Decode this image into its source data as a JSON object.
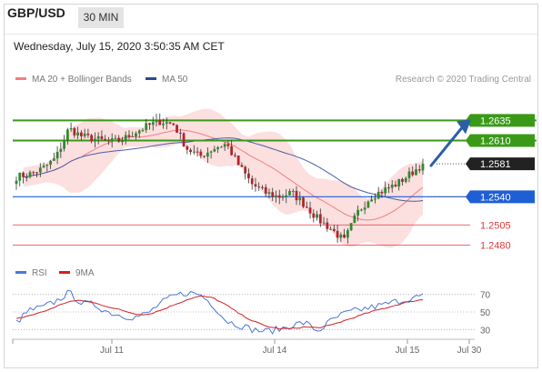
{
  "header": {
    "symbol": "GBP/USD",
    "timeframe": "30 MIN",
    "datetime": "Wednesday, July 15, 2020 3:50:35 AM CET"
  },
  "legend": {
    "ma20_label": "MA 20 + Bollinger Bands",
    "ma50_label": "MA 50",
    "credit": "Research © 2020 Trading Central"
  },
  "rsi_legend": {
    "rsi_label": "RSI",
    "ma_label": "9MA"
  },
  "colors": {
    "ma20": "#f08080",
    "ma50": "#4a5fa8",
    "bollinger": "#fbd4d4",
    "resistance": "#3a9a18",
    "support": "#1f5fd6",
    "lower": "#e23a3a",
    "arrow": "#2a5fa8",
    "up_candle": "#2e8b2e",
    "down_candle": "#b0262a"
  },
  "chart_data": [
    {
      "type": "candlestick",
      "instrument": "GBP/USD",
      "timeframe": "30 MIN",
      "xlabels": [
        "Jul 11",
        "Jul 14",
        "Jul 15",
        "Jul 30"
      ],
      "ylim": [
        1.2468,
        1.2658
      ],
      "indicators": [
        "MA 20 + Bollinger Bands",
        "MA 50"
      ],
      "close_path": [
        1.2565,
        1.2568,
        1.2575,
        1.2588,
        1.2625,
        1.2615,
        1.2612,
        1.2608,
        1.261,
        1.262,
        1.2628,
        1.2634,
        1.263,
        1.26,
        1.259,
        1.26,
        1.2606,
        1.2578,
        1.2555,
        1.2545,
        1.254,
        1.2545,
        1.253,
        1.2512,
        1.25,
        1.2485,
        1.252,
        1.254,
        1.2548,
        1.2556,
        1.2568,
        1.2581
      ],
      "current_price": 1.2581,
      "levels": [
        {
          "value": 1.2635,
          "label": "1.2635",
          "role": "resistance"
        },
        {
          "value": 1.261,
          "label": "1.2610",
          "role": "resistance"
        },
        {
          "value": 1.2581,
          "label": "1.2581",
          "role": "last"
        },
        {
          "value": 1.254,
          "label": "1.2540",
          "role": "pivot"
        },
        {
          "value": 1.2505,
          "label": "1.2505",
          "role": "support"
        },
        {
          "value": 1.248,
          "label": "1.2480",
          "role": "support"
        }
      ],
      "arrow": {
        "from": 1.2581,
        "to": 1.2635
      }
    },
    {
      "type": "line",
      "title": "RSI",
      "series": [
        {
          "name": "RSI",
          "values": [
            38,
            52,
            55,
            62,
            72,
            60,
            58,
            50,
            46,
            44,
            48,
            60,
            68,
            72,
            70,
            58,
            40,
            35,
            30,
            28,
            30,
            35,
            38,
            28,
            40,
            48,
            52,
            55,
            58,
            62,
            65,
            68
          ]
        },
        {
          "name": "9MA",
          "values": [
            42,
            46,
            50,
            56,
            62,
            63,
            60,
            56,
            52,
            48,
            47,
            52,
            58,
            64,
            68,
            66,
            58,
            48,
            40,
            34,
            31,
            31,
            33,
            32,
            35,
            40,
            45,
            50,
            54,
            58,
            62,
            64
          ]
        }
      ],
      "ylim": [
        20,
        80
      ],
      "yticks": [
        70,
        50,
        30
      ]
    }
  ]
}
